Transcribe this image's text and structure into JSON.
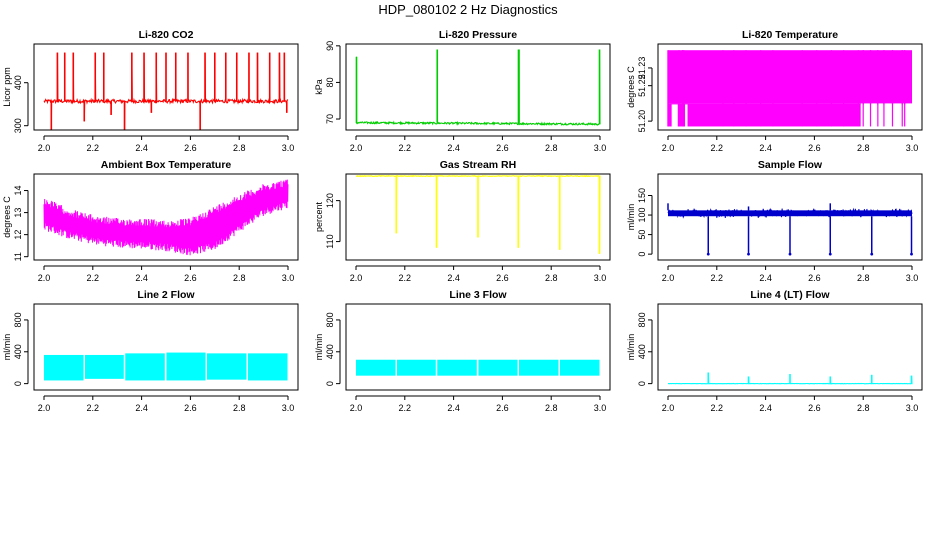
{
  "figure": {
    "title": "HDP_080102  2 Hz Diagnostics"
  },
  "chart_data": [
    {
      "type": "line",
      "title": "Li-820 CO2",
      "xlabel": "",
      "ylabel": "Licor ppm",
      "xlim": [
        2.0,
        3.0
      ],
      "ylim": [
        290,
        490
      ],
      "x_ticks": [
        "2.0",
        "2.2",
        "2.4",
        "2.6",
        "2.8",
        "3.0"
      ],
      "y_ticks": [
        300,
        400
      ],
      "color": "#ff0000",
      "style": "baseline_spikes",
      "baseline": 357,
      "baseline_noise": 4,
      "spikes": [
        {
          "x": 2.03,
          "to": 290
        },
        {
          "x": 2.055,
          "to": 470
        },
        {
          "x": 2.085,
          "to": 470
        },
        {
          "x": 2.12,
          "to": 470
        },
        {
          "x": 2.165,
          "to": 310
        },
        {
          "x": 2.21,
          "to": 470
        },
        {
          "x": 2.245,
          "to": 470
        },
        {
          "x": 2.275,
          "to": 325
        },
        {
          "x": 2.33,
          "to": 278
        },
        {
          "x": 2.36,
          "to": 470
        },
        {
          "x": 2.41,
          "to": 470
        },
        {
          "x": 2.44,
          "to": 330
        },
        {
          "x": 2.46,
          "to": 470
        },
        {
          "x": 2.5,
          "to": 470
        },
        {
          "x": 2.54,
          "to": 470
        },
        {
          "x": 2.59,
          "to": 470
        },
        {
          "x": 2.64,
          "to": 290
        },
        {
          "x": 2.66,
          "to": 470
        },
        {
          "x": 2.7,
          "to": 470
        },
        {
          "x": 2.745,
          "to": 470
        },
        {
          "x": 2.79,
          "to": 470
        },
        {
          "x": 2.84,
          "to": 470
        },
        {
          "x": 2.875,
          "to": 470
        },
        {
          "x": 2.925,
          "to": 470
        },
        {
          "x": 2.965,
          "to": 470
        },
        {
          "x": 2.985,
          "to": 470
        },
        {
          "x": 2.995,
          "to": 330
        }
      ]
    },
    {
      "type": "line",
      "title": "Li-820 Pressure",
      "xlabel": "",
      "ylabel": "kPa",
      "xlim": [
        2.0,
        3.0
      ],
      "ylim": [
        67,
        90.5
      ],
      "x_ticks": [
        "2.0",
        "2.2",
        "2.4",
        "2.6",
        "2.8",
        "3.0"
      ],
      "y_ticks": [
        70,
        80,
        90
      ],
      "color": "#00cd00",
      "style": "baseline_spikes",
      "baseline": 69.0,
      "baseline_end": 68.6,
      "baseline_noise": 0.25,
      "spikes": [
        {
          "x": 2.002,
          "to": 87
        },
        {
          "x": 2.333,
          "to": 89
        },
        {
          "x": 2.666,
          "to": 89
        },
        {
          "x": 2.668,
          "to": 89
        },
        {
          "x": 2.998,
          "to": 89
        }
      ]
    },
    {
      "type": "line",
      "title": "Li-820 Temperature",
      "xlabel": "",
      "ylabel": "degrees C",
      "xlim": [
        2.0,
        3.0
      ],
      "ylim": [
        51.195,
        51.2435
      ],
      "x_ticks": [
        "2.0",
        "2.2",
        "2.4",
        "2.6",
        "2.8",
        "3.0"
      ],
      "y_ticks": [
        "51.20",
        "51.22",
        "51.23"
      ],
      "color": "#ff00ff",
      "style": "filled_band",
      "band_top": 51.24,
      "band_bottom": 51.21,
      "drops_to": 51.197,
      "drop_x": [
        2.045,
        2.06,
        2.065,
        2.225,
        2.27,
        2.32,
        2.38,
        2.43,
        2.55,
        2.61,
        2.67,
        2.72,
        2.78,
        2.8,
        2.83,
        2.86,
        2.885,
        2.92,
        2.96,
        2.97
      ]
    },
    {
      "type": "line",
      "title": "Ambient Box Temperature",
      "xlabel": "",
      "ylabel": "degrees C",
      "xlim": [
        2.0,
        3.0
      ],
      "ylim": [
        10.85,
        14.75
      ],
      "x_ticks": [
        "2.0",
        "2.2",
        "2.4",
        "2.6",
        "2.8",
        "3.0"
      ],
      "y_ticks": [
        11,
        12,
        13,
        14
      ],
      "color": "#ff00ff",
      "style": "envelope",
      "x": [
        2.0,
        2.1,
        2.2,
        2.3,
        2.4,
        2.5,
        2.6,
        2.7,
        2.8,
        2.9,
        3.0
      ],
      "upper": [
        13.7,
        13.2,
        12.9,
        12.75,
        12.75,
        12.65,
        12.75,
        13.3,
        13.85,
        14.3,
        14.55
      ],
      "lower": [
        12.2,
        11.8,
        11.55,
        11.4,
        11.35,
        11.25,
        11.05,
        11.3,
        12.1,
        12.85,
        13.2
      ]
    },
    {
      "type": "line",
      "title": "Gas Stream RH",
      "xlabel": "",
      "ylabel": "percent",
      "xlim": [
        2.0,
        3.0
      ],
      "ylim": [
        105.5,
        126.5
      ],
      "x_ticks": [
        "2.0",
        "2.2",
        "2.4",
        "2.6",
        "2.8",
        "3.0"
      ],
      "y_ticks": [
        110,
        120
      ],
      "color": "#ffff00",
      "style": "baseline_spikes",
      "baseline": 126.0,
      "baseline_noise": 0.1,
      "spikes": [
        {
          "x": 2.165,
          "to": 112
        },
        {
          "x": 2.33,
          "to": 108.5
        },
        {
          "x": 2.5,
          "to": 111
        },
        {
          "x": 2.665,
          "to": 108.5
        },
        {
          "x": 2.835,
          "to": 108
        },
        {
          "x": 2.998,
          "to": 107
        }
      ]
    },
    {
      "type": "line",
      "title": "Sample Flow",
      "xlabel": "",
      "ylabel": "ml/min",
      "xlim": [
        2.0,
        3.0
      ],
      "ylim": [
        -15,
        205
      ],
      "x_ticks": [
        "2.0",
        "2.2",
        "2.4",
        "2.6",
        "2.8",
        "3.0"
      ],
      "y_ticks": [
        0,
        50,
        100,
        150
      ],
      "color": "#0000cd",
      "style": "band_with_dips",
      "band_top": 112,
      "band_bottom": 97,
      "dips": [
        {
          "x": 2.165,
          "to": 0
        },
        {
          "x": 2.33,
          "to": 0
        },
        {
          "x": 2.5,
          "to": 0
        },
        {
          "x": 2.665,
          "to": 0
        },
        {
          "x": 2.835,
          "to": 0
        },
        {
          "x": 2.998,
          "to": 0
        }
      ],
      "peaks": [
        {
          "x": 2.0,
          "to": 130
        },
        {
          "x": 2.33,
          "to": 122
        },
        {
          "x": 2.665,
          "to": 130
        }
      ]
    },
    {
      "type": "line",
      "title": "Line 2 Flow",
      "xlabel": "",
      "ylabel": "ml/min",
      "xlim": [
        2.0,
        3.0
      ],
      "ylim": [
        -80,
        1000
      ],
      "x_ticks": [
        "2.0",
        "2.2",
        "2.4",
        "2.6",
        "2.8",
        "3.0"
      ],
      "y_ticks": [
        0,
        400,
        800
      ],
      "color": "#00ffff",
      "style": "segment_blocks",
      "segments": [
        {
          "x0": 2.0,
          "x1": 2.162,
          "top": 360,
          "bottom": 40
        },
        {
          "x0": 2.168,
          "x1": 2.327,
          "top": 360,
          "bottom": 60
        },
        {
          "x0": 2.333,
          "x1": 2.495,
          "top": 380,
          "bottom": 40
        },
        {
          "x0": 2.502,
          "x1": 2.662,
          "top": 390,
          "bottom": 40
        },
        {
          "x0": 2.668,
          "x1": 2.83,
          "top": 380,
          "bottom": 50
        },
        {
          "x0": 2.836,
          "x1": 2.998,
          "top": 380,
          "bottom": 40
        }
      ]
    },
    {
      "type": "line",
      "title": "Line 3 Flow",
      "xlabel": "",
      "ylabel": "ml/min",
      "xlim": [
        2.0,
        3.0
      ],
      "ylim": [
        -80,
        1000
      ],
      "x_ticks": [
        "2.0",
        "2.2",
        "2.4",
        "2.6",
        "2.8",
        "3.0"
      ],
      "y_ticks": [
        0,
        400,
        800
      ],
      "color": "#00ffff",
      "style": "segment_blocks",
      "segments": [
        {
          "x0": 2.0,
          "x1": 2.162,
          "top": 300,
          "bottom": 100
        },
        {
          "x0": 2.168,
          "x1": 2.327,
          "top": 300,
          "bottom": 100
        },
        {
          "x0": 2.333,
          "x1": 2.495,
          "top": 300,
          "bottom": 100
        },
        {
          "x0": 2.502,
          "x1": 2.662,
          "top": 300,
          "bottom": 100
        },
        {
          "x0": 2.668,
          "x1": 2.83,
          "top": 300,
          "bottom": 100
        },
        {
          "x0": 2.836,
          "x1": 2.998,
          "top": 300,
          "bottom": 100
        }
      ]
    },
    {
      "type": "line",
      "title": "Line 4 (LT) Flow",
      "xlabel": "",
      "ylabel": "ml/min",
      "xlim": [
        2.0,
        3.0
      ],
      "ylim": [
        -80,
        1000
      ],
      "x_ticks": [
        "2.0",
        "2.2",
        "2.4",
        "2.6",
        "2.8",
        "3.0"
      ],
      "y_ticks": [
        0,
        400,
        800
      ],
      "color": "#00ffff",
      "style": "baseline_spikes",
      "baseline": 0,
      "baseline_noise": 2,
      "spikes": [
        {
          "x": 2.165,
          "to": 140
        },
        {
          "x": 2.33,
          "to": 90
        },
        {
          "x": 2.5,
          "to": 120
        },
        {
          "x": 2.665,
          "to": 90
        },
        {
          "x": 2.835,
          "to": 110
        },
        {
          "x": 2.998,
          "to": 100
        }
      ]
    }
  ]
}
